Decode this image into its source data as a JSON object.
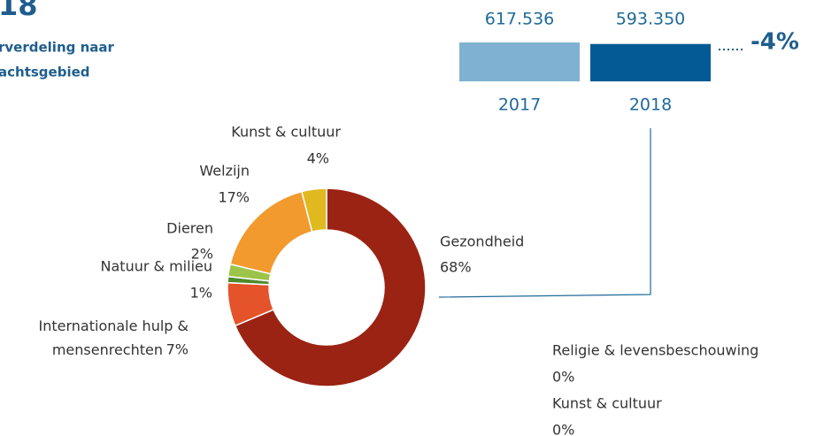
{
  "header": {
    "title": "18",
    "subtitle_lines": [
      "rverdeling naar",
      "achtsgebied"
    ]
  },
  "chart_data": [
    {
      "type": "bar",
      "categories": [
        "2017",
        "2018"
      ],
      "values": [
        617536,
        593350
      ],
      "value_labels": [
        "617.536",
        "593.350"
      ],
      "colors": [
        "#7fb2d2",
        "#045a94"
      ],
      "annotation": "-4%"
    },
    {
      "type": "donut",
      "categories": [
        "Gezondheid",
        "Internationale hulp & mensenrechten",
        "Natuur & milieu",
        "Dieren",
        "Welzijn",
        "Kunst & cultuur",
        "Religie & levensbeschouwing",
        "Kunst & cultuur"
      ],
      "values": [
        68,
        7,
        1,
        2,
        17,
        4,
        0,
        0
      ],
      "value_labels": [
        "68%",
        "7%",
        "1%",
        "2%",
        "17%",
        "4%",
        "0%",
        "0%"
      ],
      "colors": [
        "#9b2313",
        "#e4532a",
        "#4f8a2c",
        "#9dc44a",
        "#f29a2e",
        "#e0b820",
        "#cccccc",
        "#cccccc"
      ]
    }
  ]
}
